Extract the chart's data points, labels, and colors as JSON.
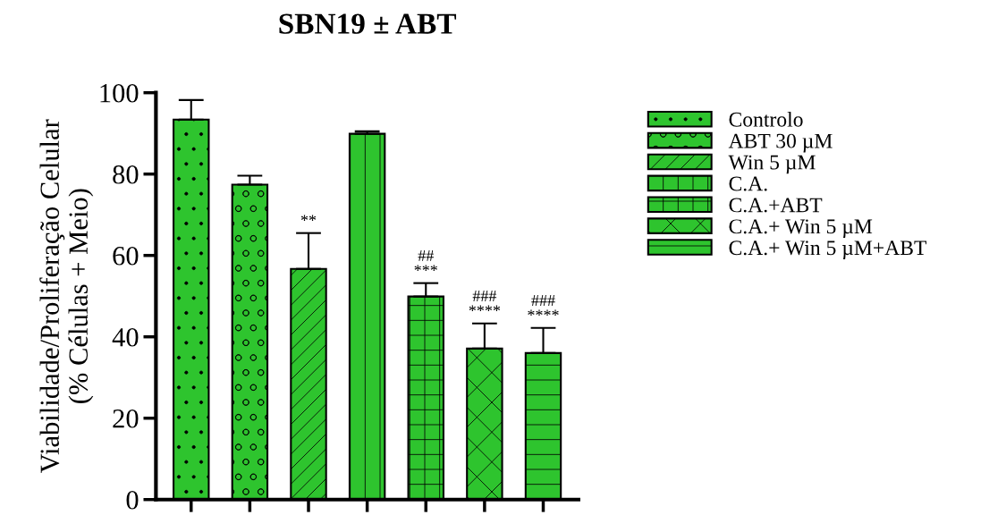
{
  "chart_data": {
    "type": "bar",
    "title": "SBN19 ± ABT",
    "ylabel": "Viabilidade/Proliferação Celular\n(% Células + Meio)",
    "categories": [
      null,
      null,
      null,
      null,
      null,
      null,
      null
    ],
    "series": [
      {
        "name": "Controlo",
        "color": "#2ec42e",
        "values": [
          93.4,
          null,
          null,
          null,
          null,
          null,
          null
        ],
        "errors": [
          [
            93.4,
            98.2
          ],
          null,
          null,
          null,
          null,
          null,
          null
        ],
        "value_labels": [
          null,
          null,
          null,
          null,
          null,
          null,
          null
        ]
      },
      {
        "name": "ABT 30 µM",
        "color": "#2ec42e",
        "values": [
          null,
          77.4,
          null,
          null,
          null,
          null,
          null
        ],
        "errors": [
          null,
          [
            77.4,
            79.6
          ],
          null,
          null,
          null,
          null,
          null
        ],
        "value_labels": [
          null,
          null,
          null,
          null,
          null,
          null,
          null
        ]
      },
      {
        "name": "Win 5 µM",
        "color": "#2ec42e",
        "values": [
          null,
          null,
          56.7,
          null,
          null,
          null,
          null
        ],
        "errors": [
          null,
          null,
          [
            56.7,
            65.5
          ],
          null,
          null,
          null,
          null
        ],
        "value_labels": [
          null,
          null,
          "**",
          null,
          null,
          null,
          null
        ]
      },
      {
        "name": "C.A.",
        "color": "#2ec42e",
        "values": [
          null,
          null,
          null,
          89.9,
          null,
          null,
          null
        ],
        "errors": [
          null,
          null,
          null,
          [
            89.9,
            90.5
          ],
          null,
          null,
          null
        ],
        "value_labels": [
          null,
          null,
          null,
          null,
          null,
          null,
          null
        ]
      },
      {
        "name": "C.A.+ABT",
        "color": "#2ec42e",
        "values": [
          null,
          null,
          null,
          null,
          49.9,
          null,
          null
        ],
        "errors": [
          null,
          null,
          null,
          null,
          [
            49.9,
            53.2
          ],
          null,
          null
        ],
        "value_labels": [
          null,
          null,
          null,
          null,
          "##\n***",
          null,
          null
        ]
      },
      {
        "name": "C.A.+ Win 5 µM",
        "color": "#2ec42e",
        "values": [
          null,
          null,
          null,
          null,
          null,
          37.1,
          null
        ],
        "errors": [
          null,
          null,
          null,
          null,
          null,
          [
            37.1,
            43.3
          ],
          null
        ],
        "value_labels": [
          null,
          null,
          null,
          null,
          null,
          "###\n****",
          null
        ]
      },
      {
        "name": "C.A.+ Win 5 µM+ABT",
        "color": "#2ec42e",
        "values": [
          null,
          null,
          null,
          null,
          null,
          null,
          36.0
        ],
        "errors": [
          null,
          null,
          null,
          null,
          null,
          null,
          [
            36.0,
            42.2
          ]
        ],
        "value_labels": [
          null,
          null,
          null,
          null,
          null,
          null,
          "###\n****"
        ]
      }
    ],
    "ylim": [
      0,
      100
    ],
    "yticks": [
      0,
      20,
      40,
      60,
      80,
      100
    ],
    "grid": false,
    "legend": "right"
  }
}
